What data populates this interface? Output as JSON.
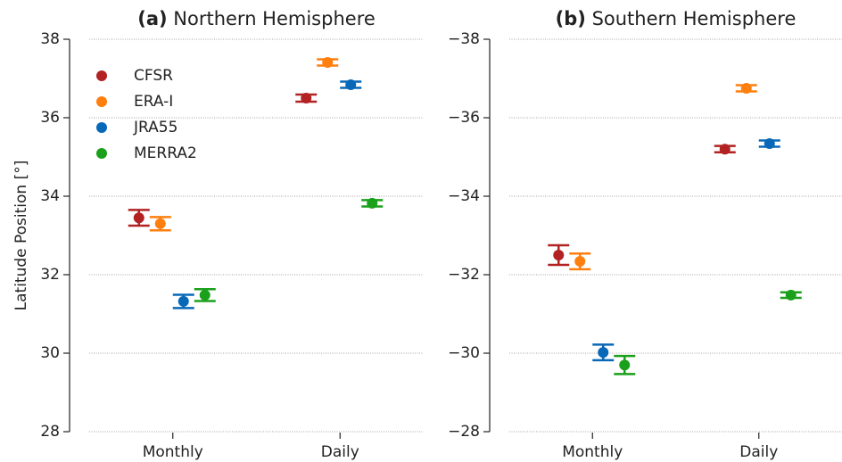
{
  "chart_data": [
    {
      "type": "errorbar",
      "title_tag": "(a)",
      "title": "Northern Hemisphere",
      "ylabel": "Latitude Position [°]",
      "categories": [
        "Monthly",
        "Daily"
      ],
      "ylim": [
        28,
        38
      ],
      "yticks": [
        28,
        30,
        32,
        34,
        36,
        38
      ],
      "grid": true,
      "legend": "upper left",
      "series": [
        {
          "name": "CFSR",
          "color": "#b22222",
          "values": [
            33.45,
            36.5
          ],
          "errors": [
            0.2,
            0.09
          ]
        },
        {
          "name": "ERA-I",
          "color": "#ff7f0e",
          "values": [
            33.3,
            37.41
          ],
          "errors": [
            0.17,
            0.08
          ]
        },
        {
          "name": "JRA55",
          "color": "#0868b8",
          "values": [
            31.32,
            36.84
          ],
          "errors": [
            0.17,
            0.08
          ]
        },
        {
          "name": "MERRA2",
          "color": "#1aa01a",
          "values": [
            31.48,
            33.82
          ],
          "errors": [
            0.15,
            0.08
          ]
        }
      ]
    },
    {
      "type": "errorbar",
      "title_tag": "(b)",
      "title": "Southern Hemisphere",
      "categories": [
        "Monthly",
        "Daily"
      ],
      "ylim": [
        -28,
        -38
      ],
      "yticks": [
        {
          "value": -28,
          "label": "−28"
        },
        {
          "value": -30,
          "label": "−30"
        },
        {
          "value": -32,
          "label": "−32"
        },
        {
          "value": -34,
          "label": "−34"
        },
        {
          "value": -36,
          "label": "−36"
        },
        {
          "value": -38,
          "label": "−38"
        }
      ],
      "grid": true,
      "series": [
        {
          "color": "#b22222",
          "values": [
            -32.5,
            -35.2
          ],
          "errors": [
            0.25,
            0.08
          ]
        },
        {
          "color": "#ff7f0e",
          "values": [
            -32.34,
            -36.75
          ],
          "errors": [
            0.2,
            0.08
          ]
        },
        {
          "color": "#0868b8",
          "values": [
            -30.02,
            -35.34
          ],
          "errors": [
            0.2,
            0.08
          ]
        },
        {
          "color": "#1aa01a",
          "values": [
            -29.7,
            -31.48
          ],
          "errors": [
            0.23,
            0.07
          ]
        }
      ]
    }
  ]
}
